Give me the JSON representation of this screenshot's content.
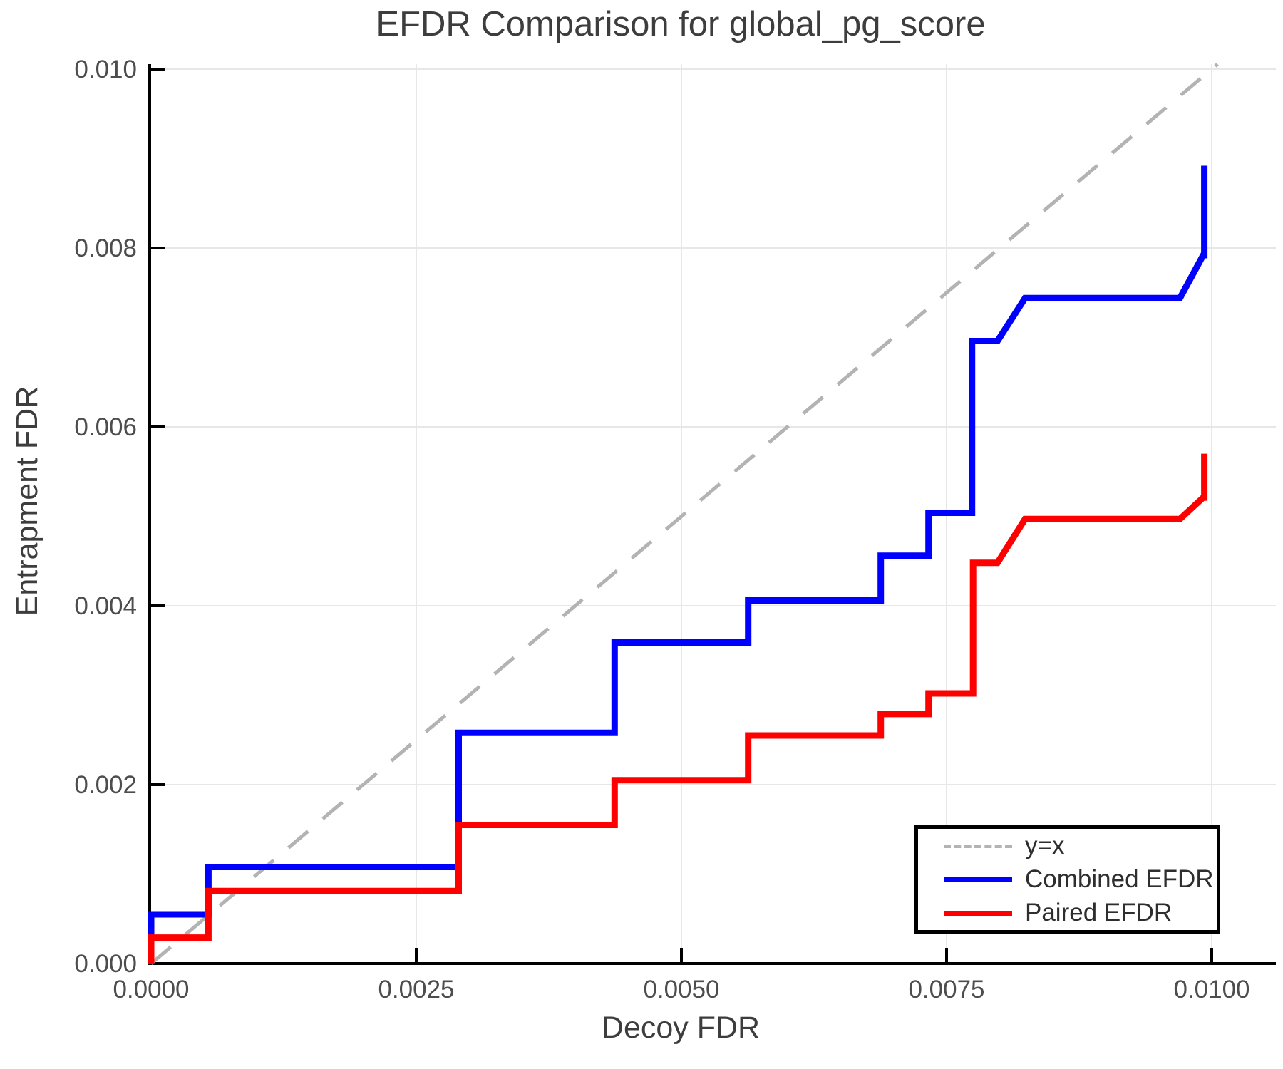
{
  "title": "EFDR Comparison for global_pg_score",
  "chart_data": {
    "type": "line",
    "title": "EFDR Comparison for global_pg_score",
    "xlabel": "Decoy FDR",
    "ylabel": "Entrapment FDR",
    "xlim": [
      0.0,
      0.0106
    ],
    "ylim": [
      0.0,
      0.01005
    ],
    "grid": true,
    "legend_position": "bottom-right",
    "x_ticks": {
      "values": [
        0.0,
        0.0025,
        0.005,
        0.0075,
        0.01
      ],
      "labels": [
        "0.0000",
        "0.0025",
        "0.0050",
        "0.0075",
        "0.0100"
      ]
    },
    "y_ticks": {
      "values": [
        0.0,
        0.002,
        0.004,
        0.006,
        0.008,
        0.01
      ],
      "labels": [
        "0.000",
        "0.002",
        "0.004",
        "0.006",
        "0.008",
        "0.010"
      ]
    },
    "series": [
      {
        "name": "y=x",
        "style": "dashed",
        "color": "#b3b3b3",
        "points": [
          [
            0.0,
            0.0
          ],
          [
            0.010056,
            0.010056
          ]
        ]
      },
      {
        "name": "Combined EFDR",
        "style": "solid",
        "color": "#0000ff",
        "points": [
          [
            0.0,
            0.0
          ],
          [
            0.0,
            0.00055
          ],
          [
            0.00054,
            0.00055
          ],
          [
            0.00054,
            0.00108
          ],
          [
            0.0029,
            0.00108
          ],
          [
            0.0029,
            0.00258
          ],
          [
            0.00437,
            0.00258
          ],
          [
            0.00437,
            0.00359
          ],
          [
            0.00563,
            0.00359
          ],
          [
            0.00563,
            0.00406
          ],
          [
            0.00688,
            0.00406
          ],
          [
            0.00688,
            0.00456
          ],
          [
            0.00733,
            0.00456
          ],
          [
            0.00733,
            0.00504
          ],
          [
            0.00774,
            0.00504
          ],
          [
            0.00774,
            0.00696
          ],
          [
            0.00798,
            0.00696
          ],
          [
            0.00824,
            0.00744
          ],
          [
            0.0097,
            0.00744
          ],
          [
            0.00992,
            0.00792
          ],
          [
            0.00993,
            0.00792
          ],
          [
            0.00993,
            0.00892
          ]
        ]
      },
      {
        "name": "Paired EFDR",
        "style": "solid",
        "color": "#ff0000",
        "points": [
          [
            0.0,
            0.0
          ],
          [
            0.0,
            0.00029
          ],
          [
            0.00054,
            0.00029
          ],
          [
            0.00054,
            0.00081
          ],
          [
            0.0029,
            0.00081
          ],
          [
            0.0029,
            0.00155
          ],
          [
            0.00437,
            0.00155
          ],
          [
            0.00437,
            0.00205
          ],
          [
            0.00563,
            0.00205
          ],
          [
            0.00563,
            0.00255
          ],
          [
            0.00688,
            0.00255
          ],
          [
            0.00688,
            0.00279
          ],
          [
            0.00733,
            0.00279
          ],
          [
            0.00733,
            0.00302
          ],
          [
            0.00775,
            0.00302
          ],
          [
            0.00775,
            0.00448
          ],
          [
            0.00798,
            0.00448
          ],
          [
            0.00824,
            0.00497
          ],
          [
            0.0097,
            0.00497
          ],
          [
            0.00992,
            0.00521
          ],
          [
            0.00993,
            0.00521
          ],
          [
            0.00993,
            0.0057
          ]
        ]
      }
    ],
    "colors": {
      "axis": "#000000",
      "grid": "#e7e7e7",
      "tick_label": "#4d4d4d",
      "title": "#3d3d3d"
    }
  }
}
